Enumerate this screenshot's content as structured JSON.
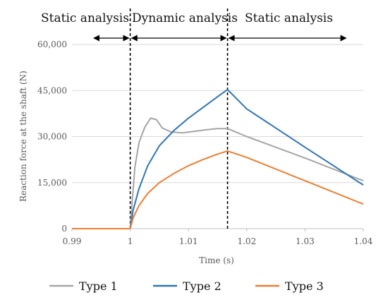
{
  "chart_data": {
    "type": "line",
    "title": "",
    "xlabel": "Time (s)",
    "ylabel": "Reaction force at the shaft (N)",
    "xlim": [
      0.99,
      1.04
    ],
    "ylim": [
      0,
      60000
    ],
    "x_ticks": [
      0.99,
      1,
      1.01,
      1.02,
      1.03,
      1.04
    ],
    "x_tick_labels": [
      "0.99",
      "1",
      "1.01",
      "1.02",
      "1.03",
      "1.04"
    ],
    "y_ticks": [
      0,
      15000,
      30000,
      45000,
      60000
    ],
    "y_tick_labels": [
      "0",
      "15,000",
      "30,000",
      "45,000",
      "60,000"
    ],
    "grid": "horizontal",
    "legend_position": "bottom",
    "boundaries": [
      1.0,
      1.0167
    ],
    "regions": [
      {
        "label": "Static analysis",
        "from": 0.99,
        "to": 1.0
      },
      {
        "label": "Dynamic analysis",
        "from": 1.0,
        "to": 1.0167
      },
      {
        "label": "Static analysis",
        "from": 1.0167,
        "to": 1.04
      }
    ],
    "series": [
      {
        "name": "Type 1",
        "color": "#a5a5a5",
        "points": [
          [
            0.99,
            0
          ],
          [
            1.0,
            0
          ],
          [
            1.0003,
            8000
          ],
          [
            1.0008,
            20000
          ],
          [
            1.0015,
            28000
          ],
          [
            1.0025,
            33000
          ],
          [
            1.0035,
            36000
          ],
          [
            1.0045,
            35500
          ],
          [
            1.0055,
            32800
          ],
          [
            1.007,
            31500
          ],
          [
            1.009,
            31200
          ],
          [
            1.011,
            31700
          ],
          [
            1.013,
            32200
          ],
          [
            1.015,
            32600
          ],
          [
            1.0167,
            32600
          ],
          [
            1.02,
            30000
          ],
          [
            1.03,
            23000
          ],
          [
            1.04,
            15600
          ]
        ]
      },
      {
        "name": "Type 2",
        "color": "#2e75b6",
        "points": [
          [
            0.99,
            0
          ],
          [
            1.0,
            0
          ],
          [
            1.0005,
            6000
          ],
          [
            1.0015,
            13000
          ],
          [
            1.003,
            20500
          ],
          [
            1.005,
            27000
          ],
          [
            1.0075,
            32000
          ],
          [
            1.01,
            36000
          ],
          [
            1.0125,
            39500
          ],
          [
            1.015,
            43000
          ],
          [
            1.0167,
            45300
          ],
          [
            1.02,
            39000
          ],
          [
            1.03,
            26500
          ],
          [
            1.04,
            14200
          ]
        ]
      },
      {
        "name": "Type 3",
        "color": "#ed7d31",
        "points": [
          [
            0.99,
            0
          ],
          [
            1.0,
            0
          ],
          [
            1.0005,
            3500
          ],
          [
            1.0015,
            7500
          ],
          [
            1.003,
            11500
          ],
          [
            1.005,
            15000
          ],
          [
            1.0075,
            18000
          ],
          [
            1.01,
            20500
          ],
          [
            1.0125,
            22500
          ],
          [
            1.015,
            24300
          ],
          [
            1.0167,
            25300
          ],
          [
            1.02,
            23200
          ],
          [
            1.03,
            15600
          ],
          [
            1.04,
            8000
          ]
        ]
      }
    ]
  }
}
